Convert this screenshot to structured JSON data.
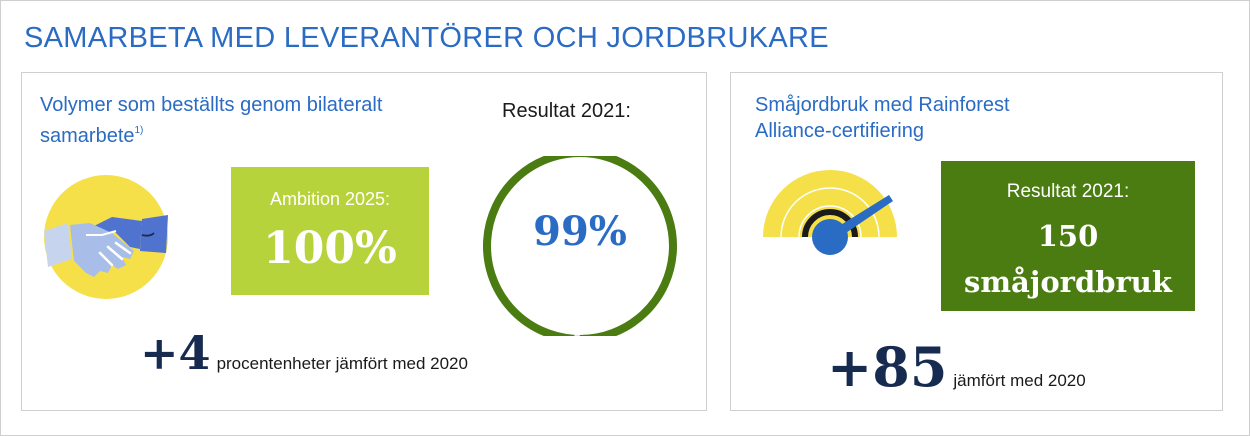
{
  "title": "SAMARBETA MED LEVERANTÖRER OCH JORDBRUKARE",
  "left_panel": {
    "heading": "Volymer som beställts genom bilateralt samarbete",
    "footnote": "1)",
    "ambition": {
      "label": "Ambition 2025:",
      "value": "100%"
    },
    "result": {
      "label": "Resultat 2021:",
      "value": "99%",
      "percent": 99
    },
    "delta": {
      "value": "+4",
      "text": "procentenheter jämfört med 2020"
    },
    "icon": "handshake-icon"
  },
  "right_panel": {
    "heading": "Småjordbruk med Rainforest Alliance-certifiering",
    "result": {
      "label": "Resultat 2021:",
      "value_line1": "150",
      "value_line2": "småjordbruk"
    },
    "delta": {
      "value": "+85",
      "text": "jämfört med 2020"
    },
    "icon": "gauge-icon"
  },
  "colors": {
    "title_blue": "#2a6bc4",
    "ambition_green": "#b6d33c",
    "result_green": "#4a7c12",
    "ring_green": "#4a7c12",
    "dark_navy": "#172a4f",
    "icon_yellow": "#f5e04a"
  }
}
